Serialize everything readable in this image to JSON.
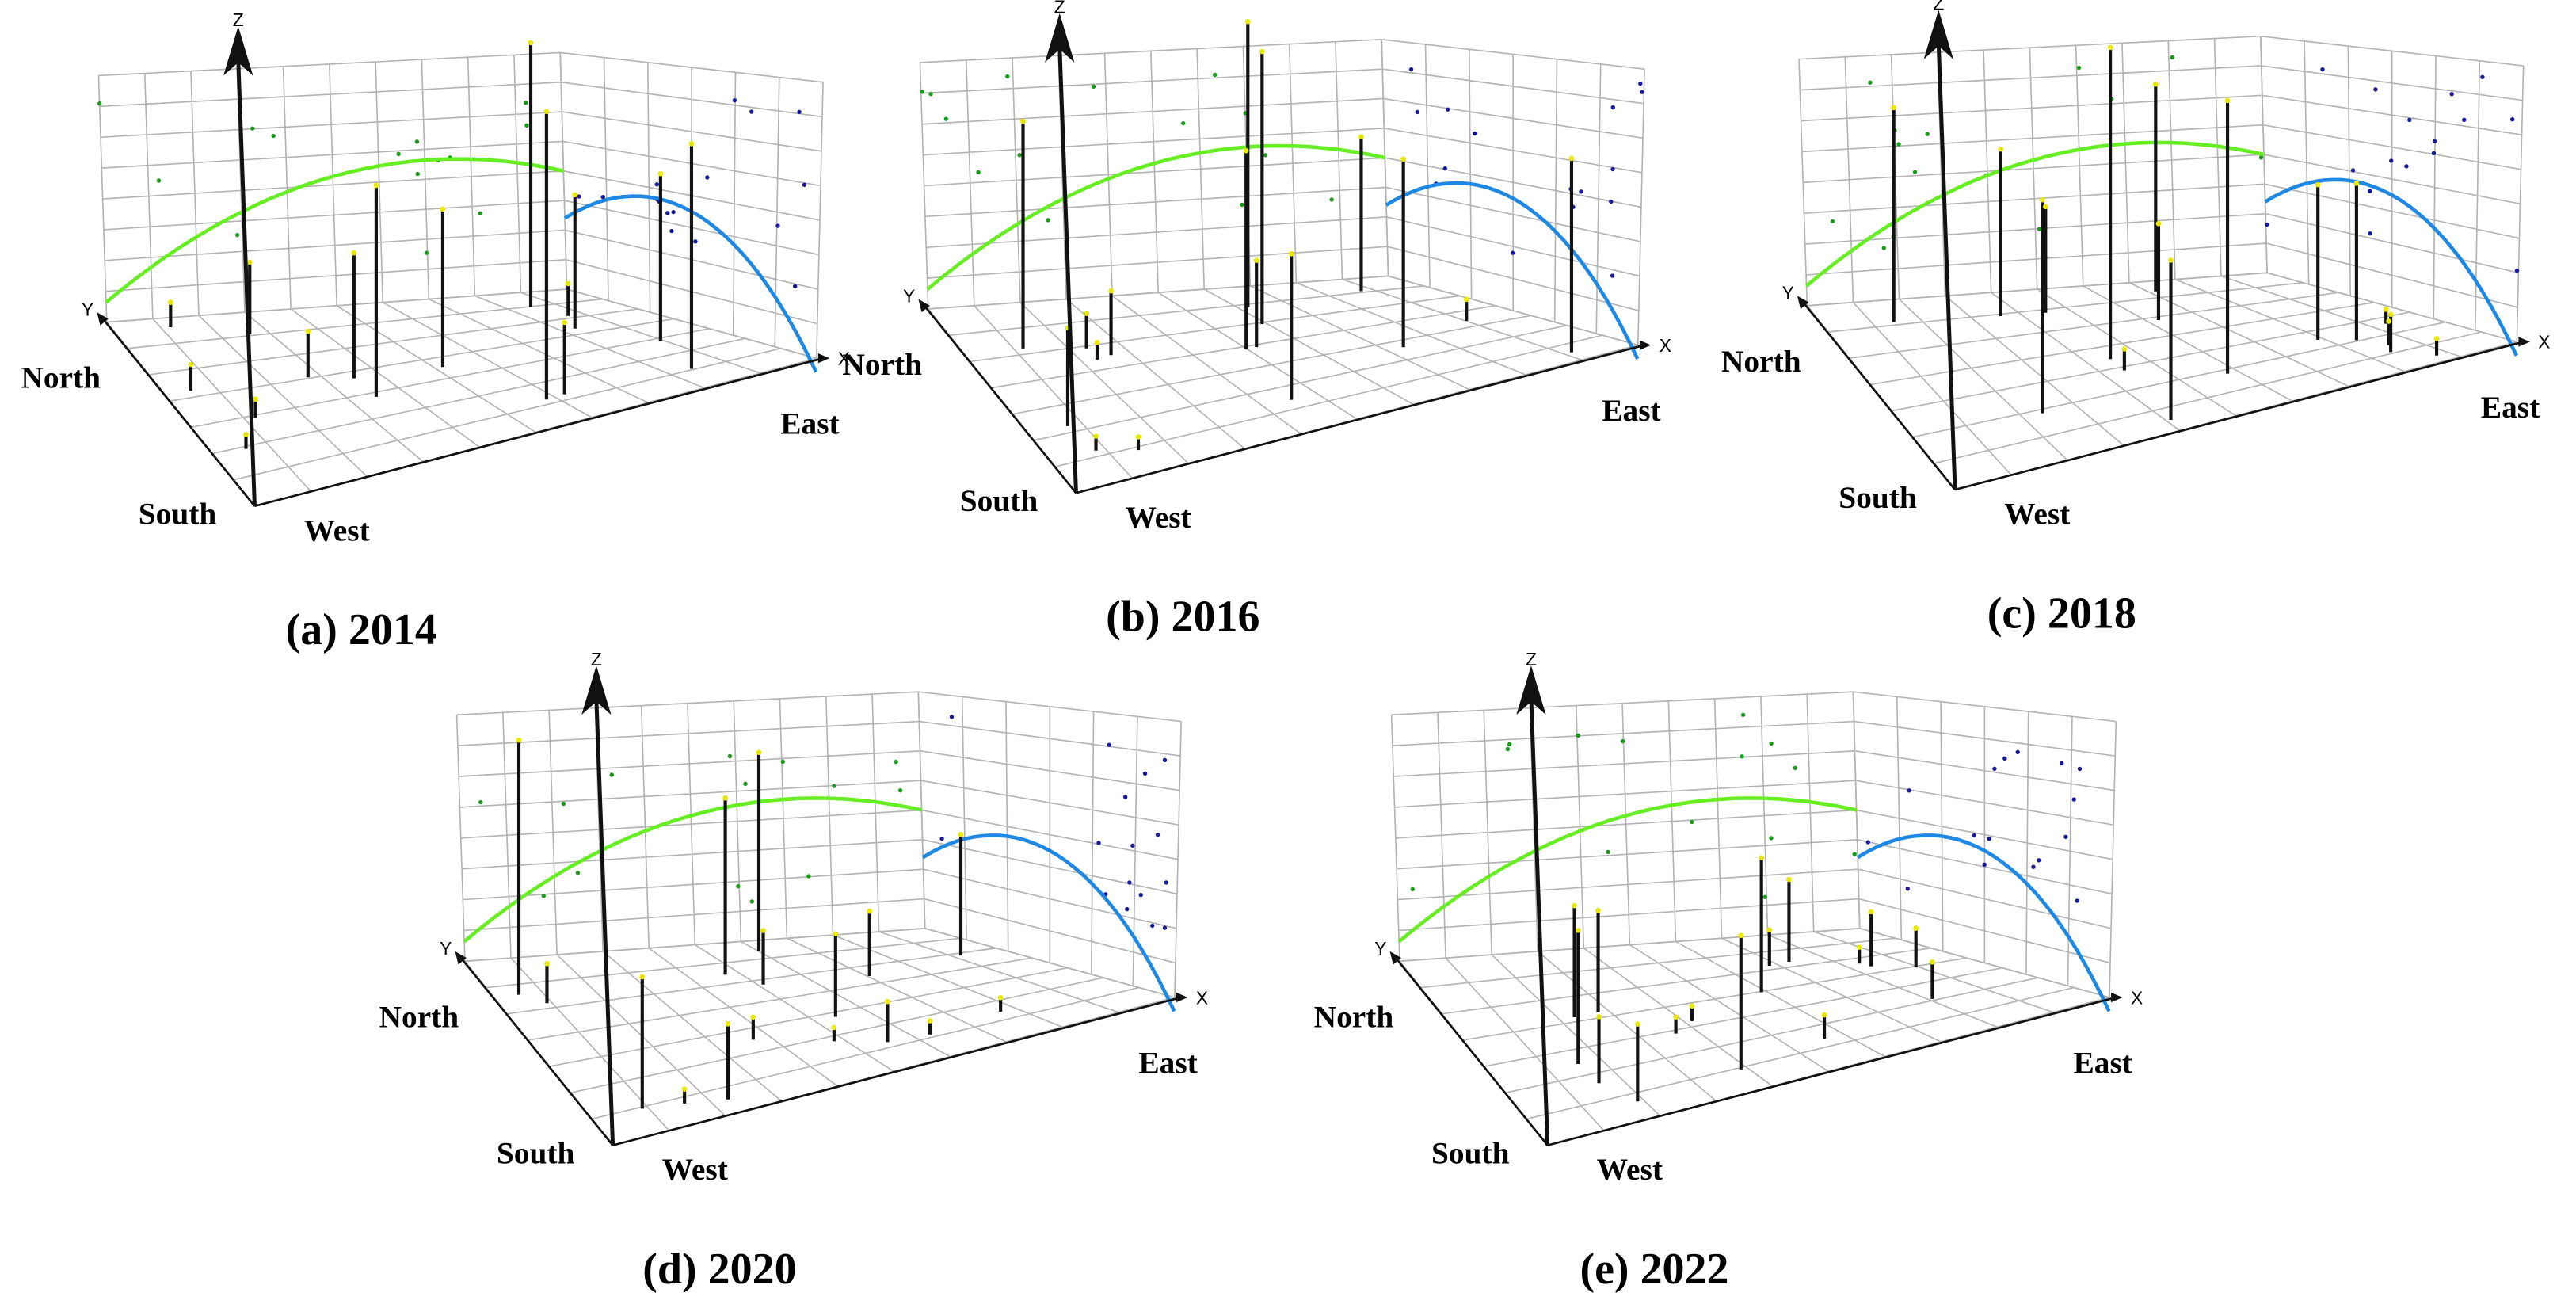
{
  "panels": [
    {
      "caption": "(a) 2014",
      "axes": {
        "z": "Z",
        "y": "Y",
        "x": "X"
      },
      "directions": {
        "north": "North",
        "south": "South",
        "west": "West",
        "east": "East"
      }
    },
    {
      "caption": "(b) 2016",
      "axes": {
        "z": "Z",
        "y": "Y",
        "x": "X"
      },
      "directions": {
        "north": "North",
        "south": "South",
        "west": "West",
        "east": "East"
      }
    },
    {
      "caption": "(c) 2018",
      "axes": {
        "z": "Z",
        "y": "Y",
        "x": "X"
      },
      "directions": {
        "north": "North",
        "south": "South",
        "west": "West",
        "east": "East"
      }
    },
    {
      "caption": "(d) 2020",
      "axes": {
        "z": "Z",
        "y": "Y",
        "x": "X"
      },
      "directions": {
        "north": "North",
        "south": "South",
        "west": "West",
        "east": "East"
      }
    },
    {
      "caption": "(e) 2022",
      "axes": {
        "z": "Z",
        "y": "Y",
        "x": "X"
      },
      "directions": {
        "north": "North",
        "south": "South",
        "west": "West",
        "east": "East"
      }
    }
  ]
}
